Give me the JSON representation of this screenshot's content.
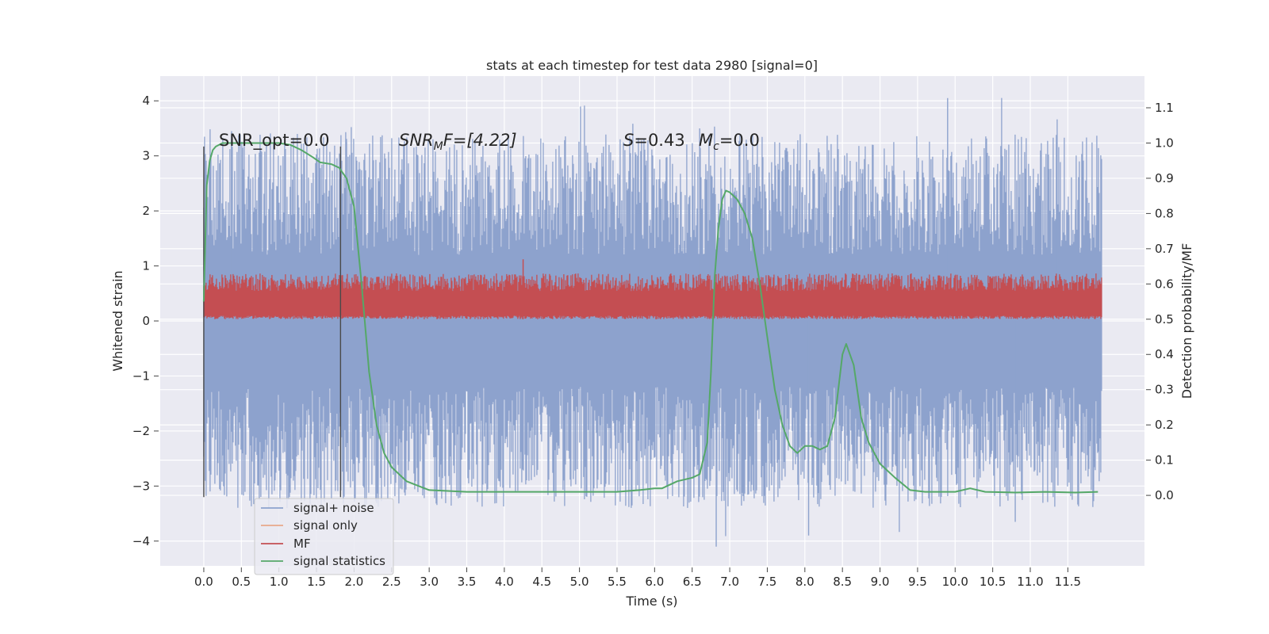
{
  "chart_data": {
    "type": "line",
    "title": "stats at each timestep for test data 2980 [signal=0]",
    "xlabel": "Time (s)",
    "ylabel": "Whitened strain",
    "y2label": "Detection probability/MF",
    "xlim": [
      -0.58,
      12.52
    ],
    "ylim": [
      -4.45,
      4.45
    ],
    "y2lim": [
      -0.2,
      1.19
    ],
    "x_ticks": [
      "0.0",
      "0.5",
      "1.0",
      "1.5",
      "2.0",
      "2.5",
      "3.0",
      "3.5",
      "4.0",
      "4.5",
      "5.0",
      "5.5",
      "6.0",
      "6.5",
      "7.0",
      "7.5",
      "8.0",
      "8.5",
      "9.0",
      "9.5",
      "10.0",
      "10.5",
      "11.0",
      "11.5"
    ],
    "y_ticks": [
      "4",
      "3",
      "2",
      "1",
      "0",
      "−1",
      "−2",
      "−3",
      "−4"
    ],
    "y2_ticks": [
      "1.1",
      "1.0",
      "0.9",
      "0.8",
      "0.7",
      "0.6",
      "0.5",
      "0.4",
      "0.3",
      "0.2",
      "0.1",
      "0.0"
    ],
    "grid": true,
    "legend_position": "lower-left",
    "annotations": {
      "snr_opt": "SNR_opt=0.0",
      "snr_mf_sym": "SNR",
      "snr_mf_sub": "M",
      "snr_mf_rest": "F=[4.22]",
      "s_sym": "S",
      "s_rest": "=0.43",
      "mc_sym": "M",
      "mc_sub": "c",
      "mc_rest": "=0.0"
    },
    "vertical_lines": [
      0.0,
      1.82
    ],
    "series": [
      {
        "name": "signal+ noise",
        "axis": "left",
        "color": "#8da2cd",
        "x_range": [
          0.0,
          11.95
        ],
        "center": 0.0,
        "typical_amplitude": 1.6,
        "peaks": [
          [
            0.37,
            3.45
          ],
          [
            1.9,
            3.25
          ],
          [
            4.0,
            3.1
          ],
          [
            6.6,
            3.5
          ],
          [
            6.82,
            -4.1
          ],
          [
            8.05,
            -3.9
          ],
          [
            9.9,
            4.05
          ],
          [
            10.8,
            -3.65
          ],
          [
            11.35,
            3.35
          ]
        ]
      },
      {
        "name": "signal only",
        "axis": "left",
        "color": "#e8a88a",
        "x": [],
        "y": []
      },
      {
        "name": "MF",
        "axis": "right",
        "color": "#c44e52",
        "x_range": [
          0.0,
          11.95
        ],
        "band": [
          0.5,
          0.6
        ],
        "peak": [
          4.25,
          0.67
        ]
      },
      {
        "name": "signal statistics",
        "axis": "right",
        "color": "#55a868",
        "x": [
          0.0,
          0.04,
          0.08,
          0.12,
          0.16,
          0.25,
          0.4,
          0.6,
          0.8,
          1.0,
          1.15,
          1.3,
          1.45,
          1.55,
          1.7,
          1.8,
          1.9,
          2.0,
          2.1,
          2.2,
          2.3,
          2.4,
          2.5,
          2.7,
          3.0,
          3.5,
          4.0,
          4.5,
          5.0,
          5.5,
          5.8,
          6.0,
          6.1,
          6.3,
          6.5,
          6.6,
          6.7,
          6.75,
          6.8,
          6.85,
          6.9,
          6.95,
          7.0,
          7.1,
          7.2,
          7.3,
          7.4,
          7.5,
          7.6,
          7.7,
          7.8,
          7.9,
          8.0,
          8.1,
          8.2,
          8.3,
          8.4,
          8.5,
          8.55,
          8.65,
          8.75,
          8.85,
          9.0,
          9.2,
          9.4,
          9.6,
          10.0,
          10.2,
          10.4,
          10.8,
          11.2,
          11.6,
          11.9
        ],
        "y": [
          0.55,
          0.88,
          0.95,
          0.98,
          0.99,
          1.0,
          1.0,
          1.0,
          1.0,
          1.0,
          0.995,
          0.98,
          0.96,
          0.945,
          0.94,
          0.93,
          0.9,
          0.82,
          0.6,
          0.35,
          0.2,
          0.12,
          0.08,
          0.04,
          0.015,
          0.01,
          0.01,
          0.01,
          0.01,
          0.01,
          0.015,
          0.02,
          0.02,
          0.04,
          0.05,
          0.06,
          0.15,
          0.35,
          0.62,
          0.76,
          0.84,
          0.865,
          0.86,
          0.84,
          0.8,
          0.73,
          0.6,
          0.45,
          0.3,
          0.2,
          0.14,
          0.12,
          0.14,
          0.14,
          0.13,
          0.14,
          0.22,
          0.4,
          0.43,
          0.37,
          0.22,
          0.15,
          0.09,
          0.05,
          0.015,
          0.01,
          0.01,
          0.02,
          0.01,
          0.008,
          0.01,
          0.008,
          0.01
        ]
      }
    ]
  }
}
